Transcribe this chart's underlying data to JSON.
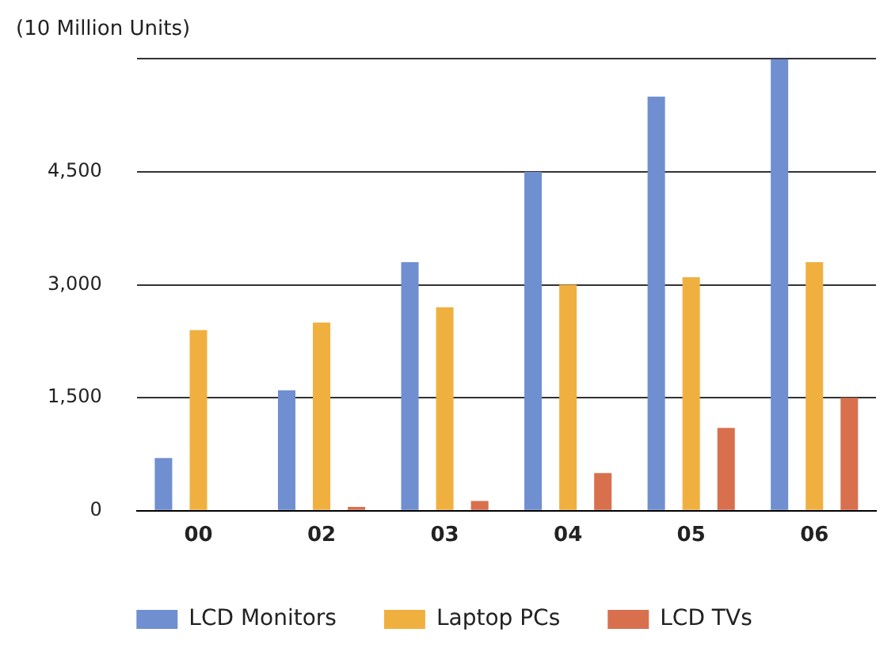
{
  "chart_data": {
    "type": "bar",
    "ylabel": "(10 Million Units)",
    "categories": [
      "00",
      "02",
      "03",
      "04",
      "05",
      "06"
    ],
    "series": [
      {
        "name": "LCD Monitors",
        "color": "#6f8fd0",
        "values": [
          700,
          1600,
          3300,
          4500,
          5500,
          6000
        ]
      },
      {
        "name": "Laptop PCs",
        "color": "#f0b040",
        "values": [
          2400,
          2500,
          2700,
          3000,
          3100,
          3300
        ]
      },
      {
        "name": "LCD TVs",
        "color": "#d8704e",
        "values": [
          0,
          50,
          130,
          500,
          1100,
          1500
        ]
      }
    ],
    "ylim": [
      0,
      6000
    ],
    "yticks": [
      0,
      {
        "value": 1500,
        "label": "1,500"
      },
      {
        "value": 3000,
        "label": "3,000"
      },
      {
        "value": 4500,
        "label": "4,500"
      },
      {
        "value": 6000,
        "label": null
      }
    ],
    "grid": "y",
    "legend": "bottom"
  }
}
